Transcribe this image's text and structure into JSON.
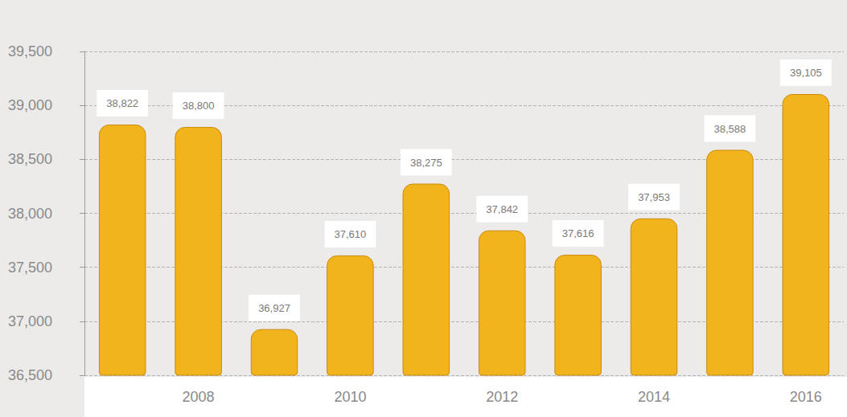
{
  "chart_data": {
    "type": "bar",
    "categories": [
      null,
      "2008",
      null,
      "2010",
      null,
      "2012",
      null,
      "2014",
      null,
      "2016"
    ],
    "values": [
      38822,
      38800,
      36927,
      37610,
      38275,
      37842,
      37616,
      37953,
      38588,
      39105
    ],
    "value_labels": [
      "38,822",
      "38,800",
      "36,927",
      "37,610",
      "38,275",
      "37,842",
      "37,616",
      "37,953",
      "38,588",
      "39,105"
    ],
    "color": "#f2b41c",
    "ylim": [
      36500,
      39500
    ],
    "yticks": [
      {
        "value": 36500,
        "label": "36,500"
      },
      {
        "value": 37000,
        "label": "37,000"
      },
      {
        "value": 37500,
        "label": "37,500"
      },
      {
        "value": 38000,
        "label": "38,000"
      },
      {
        "value": 38500,
        "label": "38,500"
      },
      {
        "value": 39000,
        "label": "39,000"
      },
      {
        "value": 39500,
        "label": "39,500"
      }
    ],
    "grid": true,
    "data_labels": true
  }
}
